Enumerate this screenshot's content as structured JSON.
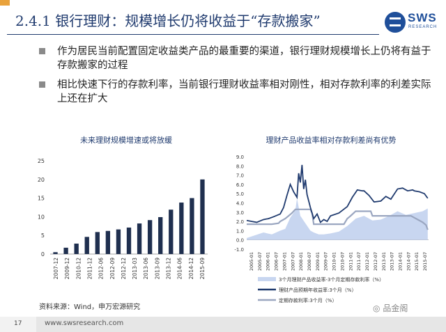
{
  "header": {
    "title": "2.4.1 银行理财：规模增长仍将收益于“存款搬家”",
    "logo_text": "SWS",
    "logo_sub": "RESEARCH"
  },
  "bullets": [
    "作为居民当前配置固定收益类产品的最重要的渠道，银行理财规模增长上仍将有益于存款搬家的过程",
    "相比快速下行的存款利率，当前银行理财收益率相对刚性，相对存款利率的利差实际上还在扩大"
  ],
  "source_note": "资料来源：Wind，申万宏源研究",
  "footer": {
    "page_number": "17",
    "url": "www.swsresearch.com",
    "watermark": "品金阁"
  },
  "colors": {
    "title": "#1f3a6e",
    "bar": "#1f2f4f",
    "line_dark": "#1f3a6e",
    "line_light": "#9aa6c0",
    "area_fill": "#c8d6f0"
  },
  "chart_data": [
    {
      "type": "bar",
      "title": "未来理财规模增速或将放缓",
      "categories": [
        "2007-12",
        "2009-12",
        "2010-12",
        "2011-12",
        "2012-03",
        "2012-06",
        "2012-09",
        "2012-12",
        "2013-03",
        "2013-06",
        "2013-09",
        "2013-12",
        "2014-06",
        "2014-12",
        "2015-09"
      ],
      "tick_labels": [
        "2007-12",
        "2009-12",
        "2010-12",
        "2011-12",
        "2012-06",
        "2012-09",
        "2012-12",
        "2013-03",
        "2013-06",
        "2013-09",
        "2013-12",
        "2014-06",
        "2014-12",
        "2015-09"
      ],
      "values": [
        0.5,
        1.7,
        2.8,
        4.6,
        5.9,
        6.2,
        6.6,
        7.1,
        8.2,
        9.1,
        9.9,
        11.9,
        13.8,
        15.0,
        20.0
      ],
      "ylim": [
        0,
        25
      ],
      "yticks": [
        0,
        5,
        10,
        15,
        20,
        25
      ],
      "grid": false
    },
    {
      "type": "line",
      "title": "理财产品收益率相对存款利差尚有优势",
      "x_ticks": [
        "2005-01",
        "2005-07",
        "2006-01",
        "2006-07",
        "2007-01",
        "2007-07",
        "2008-01",
        "2008-07",
        "2009-01",
        "2009-07",
        "2010-01",
        "2010-07",
        "2011-01",
        "2011-07",
        "2012-01",
        "2012-07",
        "2013-01",
        "2013-07",
        "2014-01",
        "2014-07",
        "2015-01",
        "2015-07"
      ],
      "ylim": [
        -1.0,
        9.0
      ],
      "yticks": [
        "9.0",
        "8.0",
        "7.0",
        "6.0",
        "5.0",
        "4.0",
        "3.0",
        "2.0",
        "1.0",
        "0.0",
        "-1.0"
      ],
      "series": [
        {
          "name": "3个月理财产品收益率-3个月定期存款利率（%）",
          "style": "area",
          "x": [
            2005.0,
            2005.5,
            2006.0,
            2006.5,
            2007.0,
            2007.3,
            2007.6,
            2007.9,
            2008.0,
            2008.2,
            2008.5,
            2008.8,
            2009.0,
            2009.3,
            2009.6,
            2010.0,
            2010.5,
            2011.0,
            2011.5,
            2012.0,
            2012.5,
            2013.0,
            2013.5,
            2014.0,
            2014.5,
            2015.0,
            2015.5,
            2015.8
          ],
          "y": [
            0.2,
            0.5,
            0.8,
            0.6,
            1.0,
            1.2,
            2.4,
            3.2,
            4.5,
            2.6,
            1.8,
            1.0,
            0.8,
            0.6,
            0.6,
            0.7,
            0.9,
            1.5,
            2.3,
            2.6,
            2.1,
            2.2,
            2.6,
            3.1,
            2.7,
            2.9,
            3.1,
            3.4
          ]
        },
        {
          "name": "理财产品预期年收益率:3个月（%）",
          "style": "line",
          "x": [
            2005.0,
            2005.3,
            2005.6,
            2006.0,
            2006.3,
            2006.6,
            2007.0,
            2007.2,
            2007.4,
            2007.6,
            2007.8,
            2008.0,
            2008.1,
            2008.2,
            2008.3,
            2008.4,
            2008.5,
            2008.6,
            2008.8,
            2009.0,
            2009.2,
            2009.4,
            2009.6,
            2009.8,
            2010.0,
            2010.5,
            2011.0,
            2011.3,
            2011.6,
            2011.9,
            2012.0,
            2012.3,
            2012.6,
            2013.0,
            2013.3,
            2013.6,
            2014.0,
            2014.3,
            2014.6,
            2014.9,
            2015.0,
            2015.3,
            2015.6,
            2015.8
          ],
          "y": [
            2.1,
            2.0,
            1.9,
            2.2,
            2.3,
            2.5,
            2.8,
            3.5,
            4.8,
            6.0,
            5.2,
            4.6,
            7.2,
            6.2,
            8.1,
            5.5,
            6.5,
            4.9,
            3.5,
            2.3,
            2.8,
            1.9,
            2.2,
            2.0,
            2.6,
            2.9,
            3.6,
            4.6,
            5.4,
            5.3,
            5.3,
            4.8,
            4.1,
            4.2,
            4.7,
            4.4,
            5.5,
            5.6,
            5.3,
            5.4,
            5.3,
            5.2,
            5.0,
            4.5
          ]
        },
        {
          "name": "定期存款利率:3个月（%）",
          "style": "line",
          "x": [
            2005.0,
            2006.5,
            2006.9,
            2007.0,
            2007.3,
            2007.5,
            2007.7,
            2007.9,
            2008.8,
            2008.9,
            2009.0,
            2010.8,
            2011.0,
            2011.2,
            2011.5,
            2012.4,
            2012.5,
            2014.8,
            2015.0,
            2015.3,
            2015.5,
            2015.7,
            2015.8
          ],
          "y": [
            1.7,
            1.7,
            1.8,
            2.0,
            2.3,
            2.6,
            2.9,
            3.3,
            3.3,
            2.9,
            1.7,
            1.7,
            2.3,
            2.6,
            3.1,
            3.1,
            2.6,
            2.6,
            2.4,
            2.1,
            1.9,
            1.6,
            1.1
          ]
        }
      ],
      "legend_placement": "bottom"
    }
  ]
}
